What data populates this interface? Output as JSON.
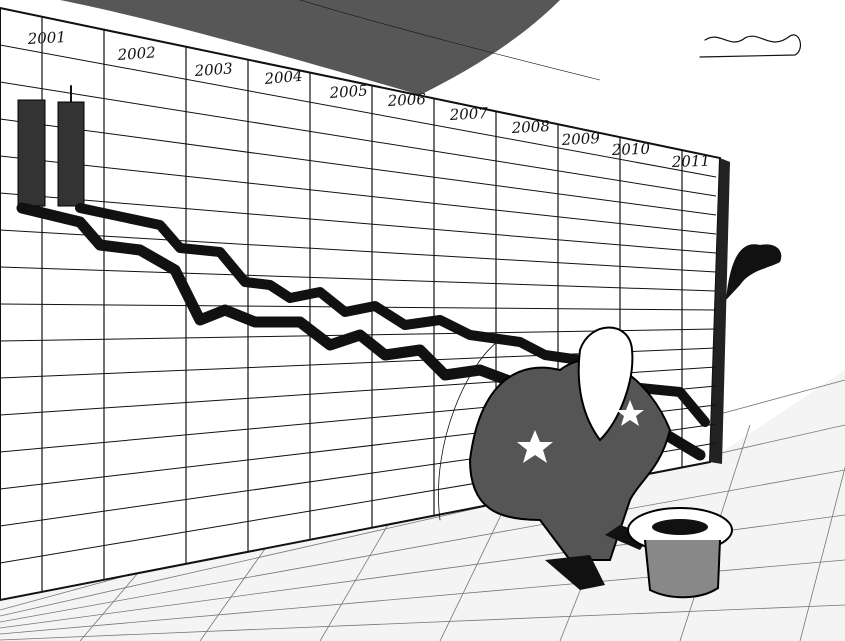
{
  "years": [
    "2001",
    "2002",
    "2003",
    "2004",
    "2005",
    "2006",
    "2007",
    "2008",
    "2009",
    "2010",
    "2011"
  ]
}
